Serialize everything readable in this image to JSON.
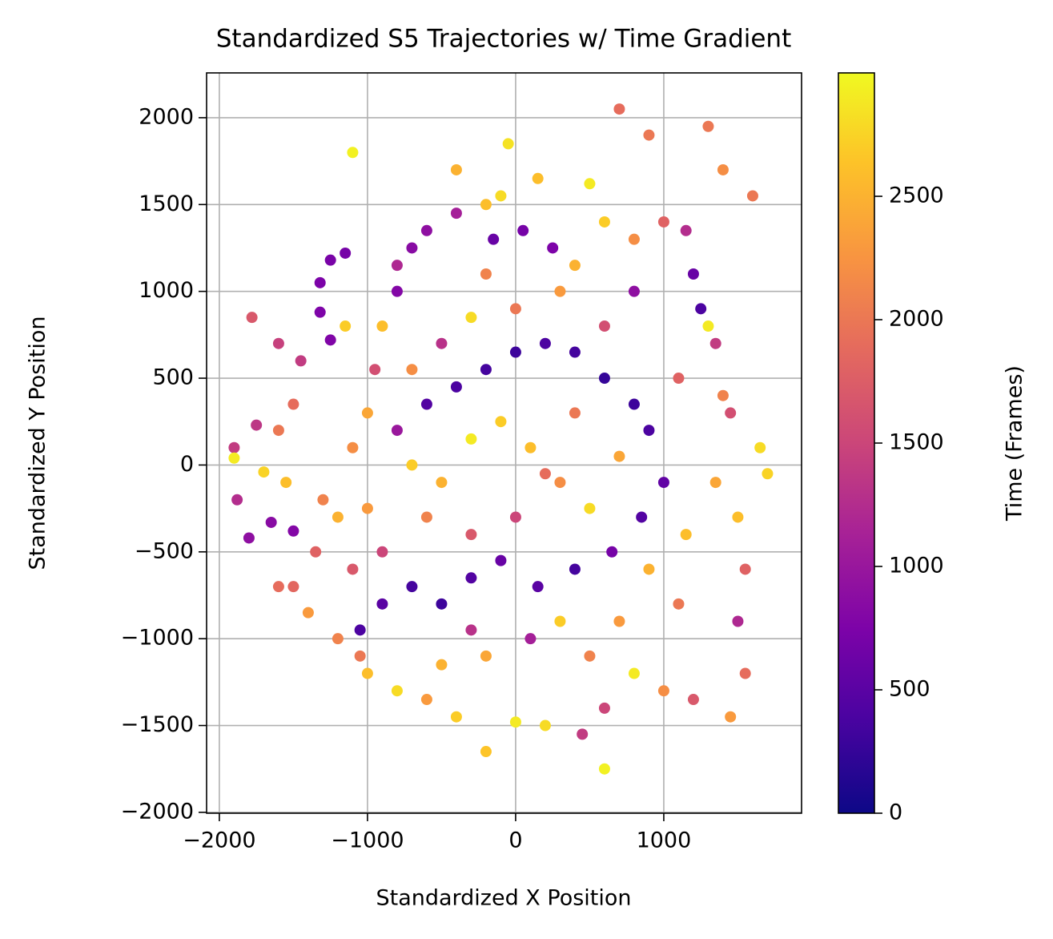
{
  "chart_data": {
    "type": "scatter",
    "title": "Standardized S5 Trajectories w/ Time Gradient",
    "x_label": "Standardized X Position",
    "y_label": "Standardized Y Position",
    "colorbar_label": "Time (Frames)",
    "colormap": "plasma",
    "grid": true,
    "xlim": [
      -2086,
      1930
    ],
    "ylim": [
      -2005,
      2258
    ],
    "clim": [
      0,
      3000
    ],
    "xticks": [
      {
        "value": -2000,
        "label": "−2000"
      },
      {
        "value": -1000,
        "label": "−1000"
      },
      0,
      1000
    ],
    "yticks": [
      {
        "value": -2000,
        "label": "−2000"
      },
      {
        "value": -1500,
        "label": "−1500"
      },
      {
        "value": -1000,
        "label": "−1000"
      },
      {
        "value": -500,
        "label": "−500"
      },
      0,
      500,
      1000,
      1500,
      2000
    ],
    "cticks": [
      0,
      500,
      1000,
      1500,
      2000,
      2500
    ],
    "x": [
      -1150,
      -1250,
      -1320,
      -1320,
      -1250,
      -1780,
      -1600,
      -1450,
      -1500,
      -1600,
      -1750,
      -1900,
      -1880,
      -1800,
      -1650,
      -1500,
      -1900,
      -1700,
      -1550,
      -1600,
      -1500,
      -1400,
      -1200,
      -1050,
      -1350,
      -1200,
      -1100,
      -1000,
      -950,
      -900,
      -800,
      -700,
      -600,
      -400,
      -200,
      -100,
      -150,
      50,
      250,
      400,
      600,
      800,
      1000,
      1150,
      1200,
      1250,
      1300,
      1350,
      1400,
      1450,
      1350,
      1500,
      1550,
      1500,
      1550,
      1450,
      1200,
      1000,
      800,
      600,
      450,
      200,
      0,
      -200,
      -400,
      -600,
      -800,
      -1000,
      -1050,
      -900,
      -700,
      -500,
      -300,
      -100,
      150,
      400,
      650,
      850,
      1000,
      900,
      800,
      600,
      400,
      200,
      0,
      -200,
      -400,
      -600,
      -800,
      -700,
      -500,
      -300,
      -100,
      100,
      300,
      500,
      700,
      900,
      1100,
      -600,
      -300,
      0,
      200,
      400,
      600,
      300,
      0,
      -300,
      -500,
      -700,
      -900,
      -1100,
      -1000,
      -1150,
      -400,
      -50,
      150,
      500,
      900,
      1300,
      1600,
      1400,
      700,
      -1100,
      1650,
      1700,
      -200,
      100,
      300,
      500,
      -300,
      -500,
      700,
      1100,
      1150,
      -800,
      800,
      -200,
      600,
      -1300
    ],
    "y": [
      1220,
      1180,
      1050,
      880,
      720,
      850,
      700,
      600,
      350,
      200,
      230,
      100,
      -200,
      -420,
      -330,
      -380,
      40,
      -40,
      -100,
      -700,
      -700,
      -850,
      -1000,
      -1100,
      -500,
      -300,
      100,
      300,
      550,
      800,
      1000,
      1250,
      1350,
      1450,
      1500,
      1550,
      1300,
      1350,
      1250,
      1150,
      1400,
      1300,
      1400,
      1350,
      1100,
      900,
      800,
      700,
      400,
      300,
      -100,
      -300,
      -600,
      -900,
      -1200,
      -1450,
      -1350,
      -1300,
      -1200,
      -1400,
      -1550,
      -1500,
      -1480,
      -1650,
      -1450,
      -1350,
      -1300,
      -1200,
      -950,
      -800,
      -700,
      -800,
      -650,
      -550,
      -700,
      -600,
      -500,
      -300,
      -100,
      200,
      350,
      500,
      650,
      700,
      650,
      550,
      450,
      350,
      200,
      0,
      -100,
      150,
      250,
      100,
      -100,
      -250,
      50,
      -600,
      -800,
      -300,
      -400,
      -300,
      -50,
      300,
      800,
      1000,
      900,
      850,
      700,
      550,
      -500,
      -600,
      -250,
      800,
      1700,
      1850,
      1650,
      1620,
      1900,
      1950,
      1550,
      1700,
      2050,
      1800,
      100,
      -50,
      -1100,
      -1000,
      -900,
      -1100,
      -950,
      -1150,
      -900,
      500,
      -400,
      1150,
      1000,
      1100,
      -1750,
      -200
    ],
    "c": [
      700,
      720,
      740,
      760,
      780,
      1700,
      1450,
      1400,
      1900,
      2000,
      1350,
      1400,
      1250,
      900,
      850,
      800,
      2900,
      2750,
      2600,
      1900,
      1850,
      2300,
      2100,
      2000,
      1800,
      2500,
      2200,
      2400,
      1600,
      2600,
      800,
      850,
      900,
      1100,
      2600,
      2800,
      600,
      700,
      750,
      2500,
      2700,
      2200,
      1800,
      1250,
      600,
      400,
      2900,
      1400,
      2100,
      1600,
      2400,
      2600,
      1800,
      1200,
      1900,
      2300,
      1700,
      2200,
      2900,
      1500,
      1400,
      2800,
      2900,
      2650,
      2700,
      2300,
      2800,
      2600,
      400,
      500,
      350,
      300,
      450,
      600,
      500,
      350,
      700,
      450,
      550,
      400,
      300,
      250,
      350,
      400,
      300,
      350,
      400,
      450,
      1000,
      2700,
      2500,
      2900,
      2700,
      2600,
      2200,
      2800,
      2400,
      2500,
      2000,
      2100,
      1700,
      1500,
      1900,
      2000,
      1600,
      2300,
      2000,
      2800,
      1300,
      2200,
      1500,
      1700,
      2300,
      2700,
      2500,
      2850,
      2600,
      2900,
      2000,
      2000,
      2000,
      2200,
      1900,
      2950,
      2800,
      2750,
      2400,
      1100,
      2700,
      2100,
      1300,
      2500,
      2300,
      1800,
      2600,
      1200,
      900,
      2100,
      2950,
      2100
    ]
  }
}
